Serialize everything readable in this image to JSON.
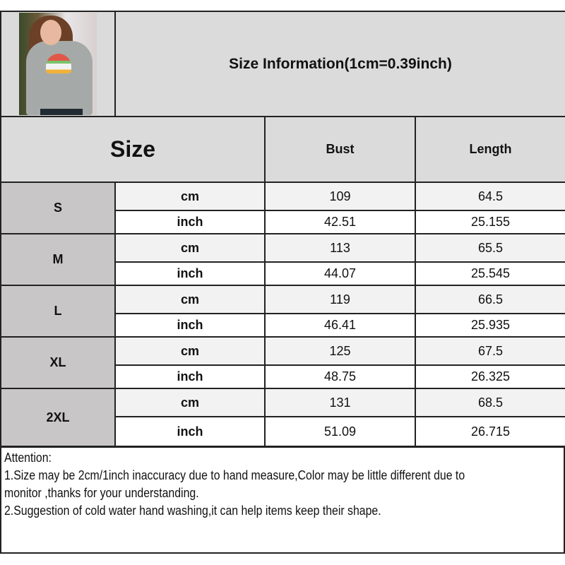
{
  "header": {
    "title": "Size Information(1cm=0.39inch)",
    "image": "hoodie-model-photo"
  },
  "columns": {
    "size": "Size",
    "bust": "Bust",
    "length": "Length"
  },
  "units": {
    "cm": "cm",
    "inch": "inch"
  },
  "rows": [
    {
      "size": "S",
      "cm": {
        "bust": "109",
        "length": "64.5"
      },
      "inch": {
        "bust": "42.51",
        "length": "25.155"
      }
    },
    {
      "size": "M",
      "cm": {
        "bust": "113",
        "length": "65.5"
      },
      "inch": {
        "bust": "44.07",
        "length": "25.545"
      }
    },
    {
      "size": "L",
      "cm": {
        "bust": "119",
        "length": "66.5"
      },
      "inch": {
        "bust": "46.41",
        "length": "25.935"
      }
    },
    {
      "size": "XL",
      "cm": {
        "bust": "125",
        "length": "67.5"
      },
      "inch": {
        "bust": "48.75",
        "length": "26.325"
      }
    },
    {
      "size": "2XL",
      "cm": {
        "bust": "131",
        "length": "68.5"
      },
      "inch": {
        "bust": "51.09",
        "length": "26.715"
      }
    }
  ],
  "attention": {
    "heading": "Attention:",
    "line1a": "1.Size may be 2cm/1inch inaccuracy due to hand measure,Color may be little different due to",
    "line1b": "monitor ,thanks for your understanding.",
    "line2": "2.Suggestion of cold water hand washing,it can help items keep their shape."
  }
}
